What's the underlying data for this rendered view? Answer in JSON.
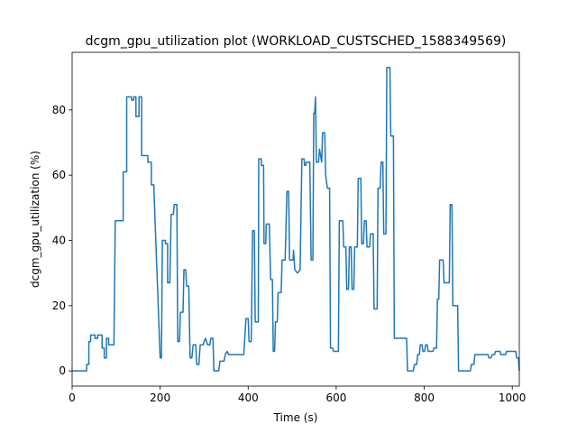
{
  "chart_data": {
    "type": "line",
    "title": "dcgm_gpu_utilization plot (WORKLOAD_CUSTSCHED_1588349569)",
    "x_label": "Time (s)",
    "y_label": "dcgm_gpu_utilization (%)",
    "xlim": [
      0,
      1016
    ],
    "ylim": [
      -4.65,
      97.65
    ],
    "xticks": [
      0,
      200,
      400,
      600,
      800,
      1000
    ],
    "yticks": [
      0,
      20,
      40,
      60,
      80
    ],
    "grid": false,
    "series": [
      {
        "color": "#1f77b4",
        "x": [
          0,
          33,
          33,
          38,
          38,
          42,
          42,
          52,
          52,
          58,
          58,
          68,
          68,
          73,
          73,
          78,
          78,
          83,
          83,
          95,
          98,
          116,
          116,
          124,
          124,
          135,
          135,
          140,
          140,
          145,
          145,
          152,
          152,
          158,
          158,
          172,
          172,
          180,
          180,
          186,
          186,
          200,
          203,
          205,
          212,
          212,
          217,
          217,
          222,
          225,
          230,
          232,
          238,
          240,
          244,
          246,
          252,
          254,
          258,
          260,
          265,
          268,
          272,
          275,
          281,
          283,
          288,
          291,
          298,
          300,
          303,
          308,
          313,
          315,
          320,
          322,
          333,
          336,
          345,
          348,
          352,
          356,
          390,
          395,
          400,
          402,
          407,
          410,
          414,
          416,
          423,
          424,
          430,
          430,
          435,
          436,
          440,
          441,
          448,
          451,
          455,
          457,
          460,
          462,
          466,
          468,
          475,
          477,
          484,
          488,
          492,
          494,
          502,
          503,
          506,
          512,
          518,
          522,
          527,
          528,
          531,
          532,
          540,
          543,
          547,
          549,
          551,
          553,
          555,
          560,
          562,
          567,
          569,
          574,
          576,
          580,
          585,
          587,
          592,
          594,
          605,
          607,
          615,
          617,
          622,
          624,
          628,
          630,
          634,
          636,
          640,
          642,
          648,
          650,
          656,
          658,
          662,
          664,
          668,
          670,
          676,
          678,
          684,
          686,
          693,
          695,
          700,
          702,
          706,
          708,
          713,
          715,
          722,
          724,
          730,
          732,
          760,
          762,
          775,
          778,
          783,
          785,
          789,
          791,
          795,
          797,
          801,
          803,
          807,
          809,
          820,
          822,
          828,
          830,
          833,
          835,
          843,
          845,
          857,
          859,
          863,
          865,
          876,
          878,
          905,
          907,
          913,
          915,
          945,
          947,
          952,
          954,
          960,
          962,
          972,
          974,
          985,
          987,
          1008,
          1010,
          1014,
          1016
        ],
        "values": [
          0,
          0,
          2,
          2,
          9,
          9,
          11,
          11,
          10,
          10,
          11,
          11,
          7,
          7,
          4,
          4,
          10,
          10,
          8,
          8,
          46,
          46,
          61,
          61,
          84,
          84,
          83,
          83,
          84,
          84,
          78,
          78,
          84,
          84,
          66,
          66,
          64,
          64,
          57,
          57,
          55,
          4,
          4,
          40,
          40,
          39,
          39,
          27,
          27,
          48,
          48,
          51,
          51,
          9,
          9,
          18,
          18,
          31,
          31,
          26,
          26,
          4,
          4,
          8,
          8,
          2,
          2,
          8,
          8,
          9,
          10,
          8,
          8,
          10,
          10,
          0,
          0,
          3,
          3,
          5,
          6,
          5,
          5,
          16,
          16,
          9,
          9,
          43,
          43,
          15,
          15,
          65,
          65,
          63,
          63,
          39,
          39,
          45,
          45,
          28,
          28,
          6,
          6,
          15,
          15,
          24,
          24,
          34,
          34,
          55,
          55,
          34,
          34,
          37,
          31,
          30,
          31,
          65,
          65,
          63,
          63,
          64,
          64,
          34,
          34,
          79,
          79,
          84,
          64,
          64,
          68,
          64,
          73,
          73,
          60,
          56,
          56,
          7,
          7,
          6,
          6,
          46,
          46,
          38,
          38,
          25,
          25,
          38,
          38,
          25,
          25,
          38,
          38,
          59,
          59,
          39,
          39,
          46,
          46,
          38,
          38,
          42,
          42,
          19,
          19,
          56,
          56,
          64,
          64,
          42,
          42,
          93,
          93,
          72,
          72,
          10,
          10,
          0,
          0,
          2,
          2,
          5,
          5,
          8,
          8,
          6,
          6,
          8,
          8,
          6,
          6,
          7,
          7,
          22,
          22,
          34,
          34,
          27,
          27,
          51,
          51,
          20,
          20,
          0,
          0,
          2,
          2,
          5,
          5,
          4,
          4,
          5,
          5,
          6,
          6,
          5,
          5,
          6,
          6,
          4,
          4,
          0
        ]
      }
    ]
  }
}
